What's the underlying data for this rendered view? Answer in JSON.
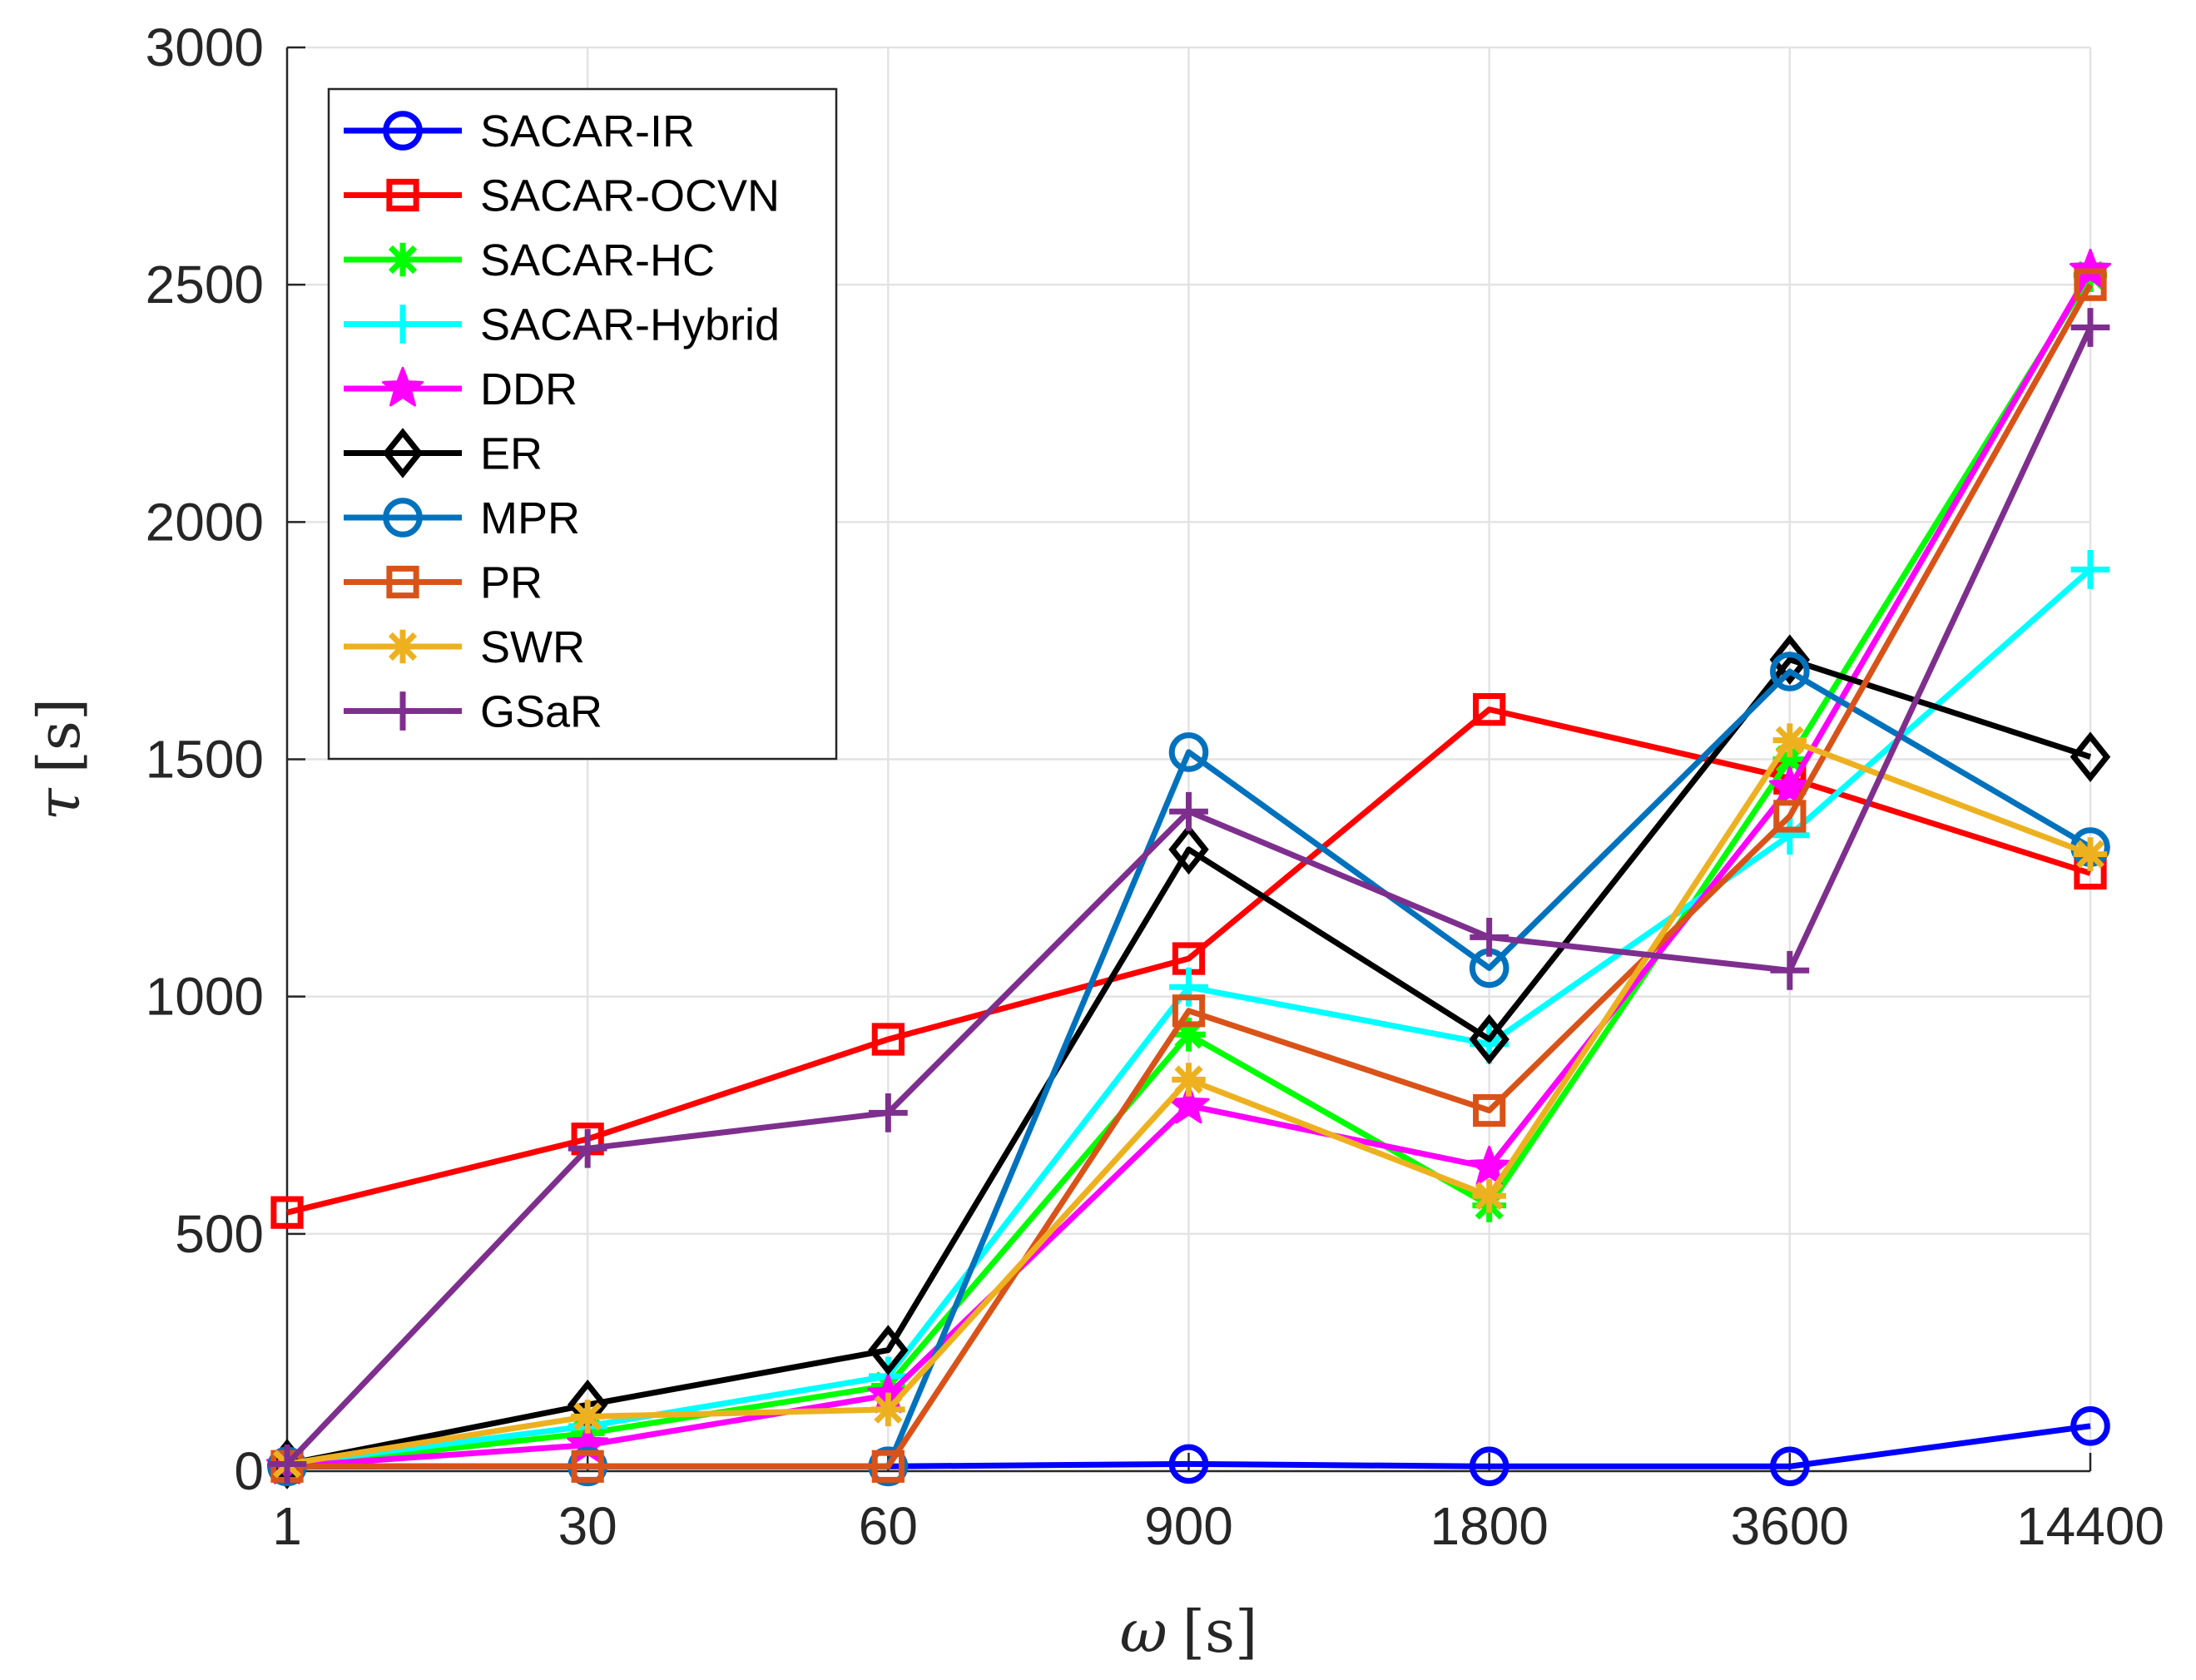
{
  "chart_data": {
    "type": "line",
    "xlabel_symbol": "ω",
    "xlabel_unit": "[s]",
    "ylabel_symbol": "τ",
    "ylabel_unit": "[s]",
    "categories": [
      "1",
      "30",
      "60",
      "900",
      "1800",
      "3600",
      "14400"
    ],
    "ylim": [
      0,
      3000
    ],
    "yticks": [
      0,
      500,
      1000,
      1500,
      2000,
      2500,
      3000
    ],
    "grid": true,
    "legend_position": "top-left",
    "series": [
      {
        "name": "SACAR-IR",
        "color": "#0000FF",
        "marker": "circle",
        "values": [
          10,
          10,
          10,
          15,
          10,
          10,
          95
        ]
      },
      {
        "name": "SACAR-OCVN",
        "color": "#FF0000",
        "marker": "square",
        "values": [
          545,
          700,
          910,
          1080,
          1605,
          1460,
          1260
        ]
      },
      {
        "name": "SACAR-HC",
        "color": "#00FF00",
        "marker": "asterisk",
        "values": [
          10,
          80,
          180,
          920,
          560,
          1500,
          2520
        ]
      },
      {
        "name": "SACAR-Hybrid",
        "color": "#00FFFF",
        "marker": "plus",
        "values": [
          15,
          95,
          200,
          1020,
          900,
          1340,
          1900
        ]
      },
      {
        "name": "DDR",
        "color": "#FF00FF",
        "marker": "star",
        "values": [
          10,
          55,
          160,
          770,
          640,
          1440,
          2530
        ]
      },
      {
        "name": "ER",
        "color": "#000000",
        "marker": "diamond",
        "values": [
          15,
          140,
          255,
          1310,
          910,
          1710,
          1505
        ]
      },
      {
        "name": "MPR",
        "color": "#0072BD",
        "marker": "circle",
        "values": [
          10,
          10,
          10,
          1515,
          1060,
          1685,
          1315
        ]
      },
      {
        "name": "PR",
        "color": "#D95319",
        "marker": "square",
        "values": [
          10,
          10,
          10,
          970,
          760,
          1380,
          2500
        ]
      },
      {
        "name": "SWR",
        "color": "#EDB120",
        "marker": "asterisk",
        "values": [
          15,
          115,
          130,
          825,
          580,
          1540,
          1300
        ]
      },
      {
        "name": "GSaR",
        "color": "#7E2F8E",
        "marker": "plus",
        "values": [
          15,
          680,
          755,
          1390,
          1125,
          1055,
          2410
        ]
      }
    ]
  }
}
